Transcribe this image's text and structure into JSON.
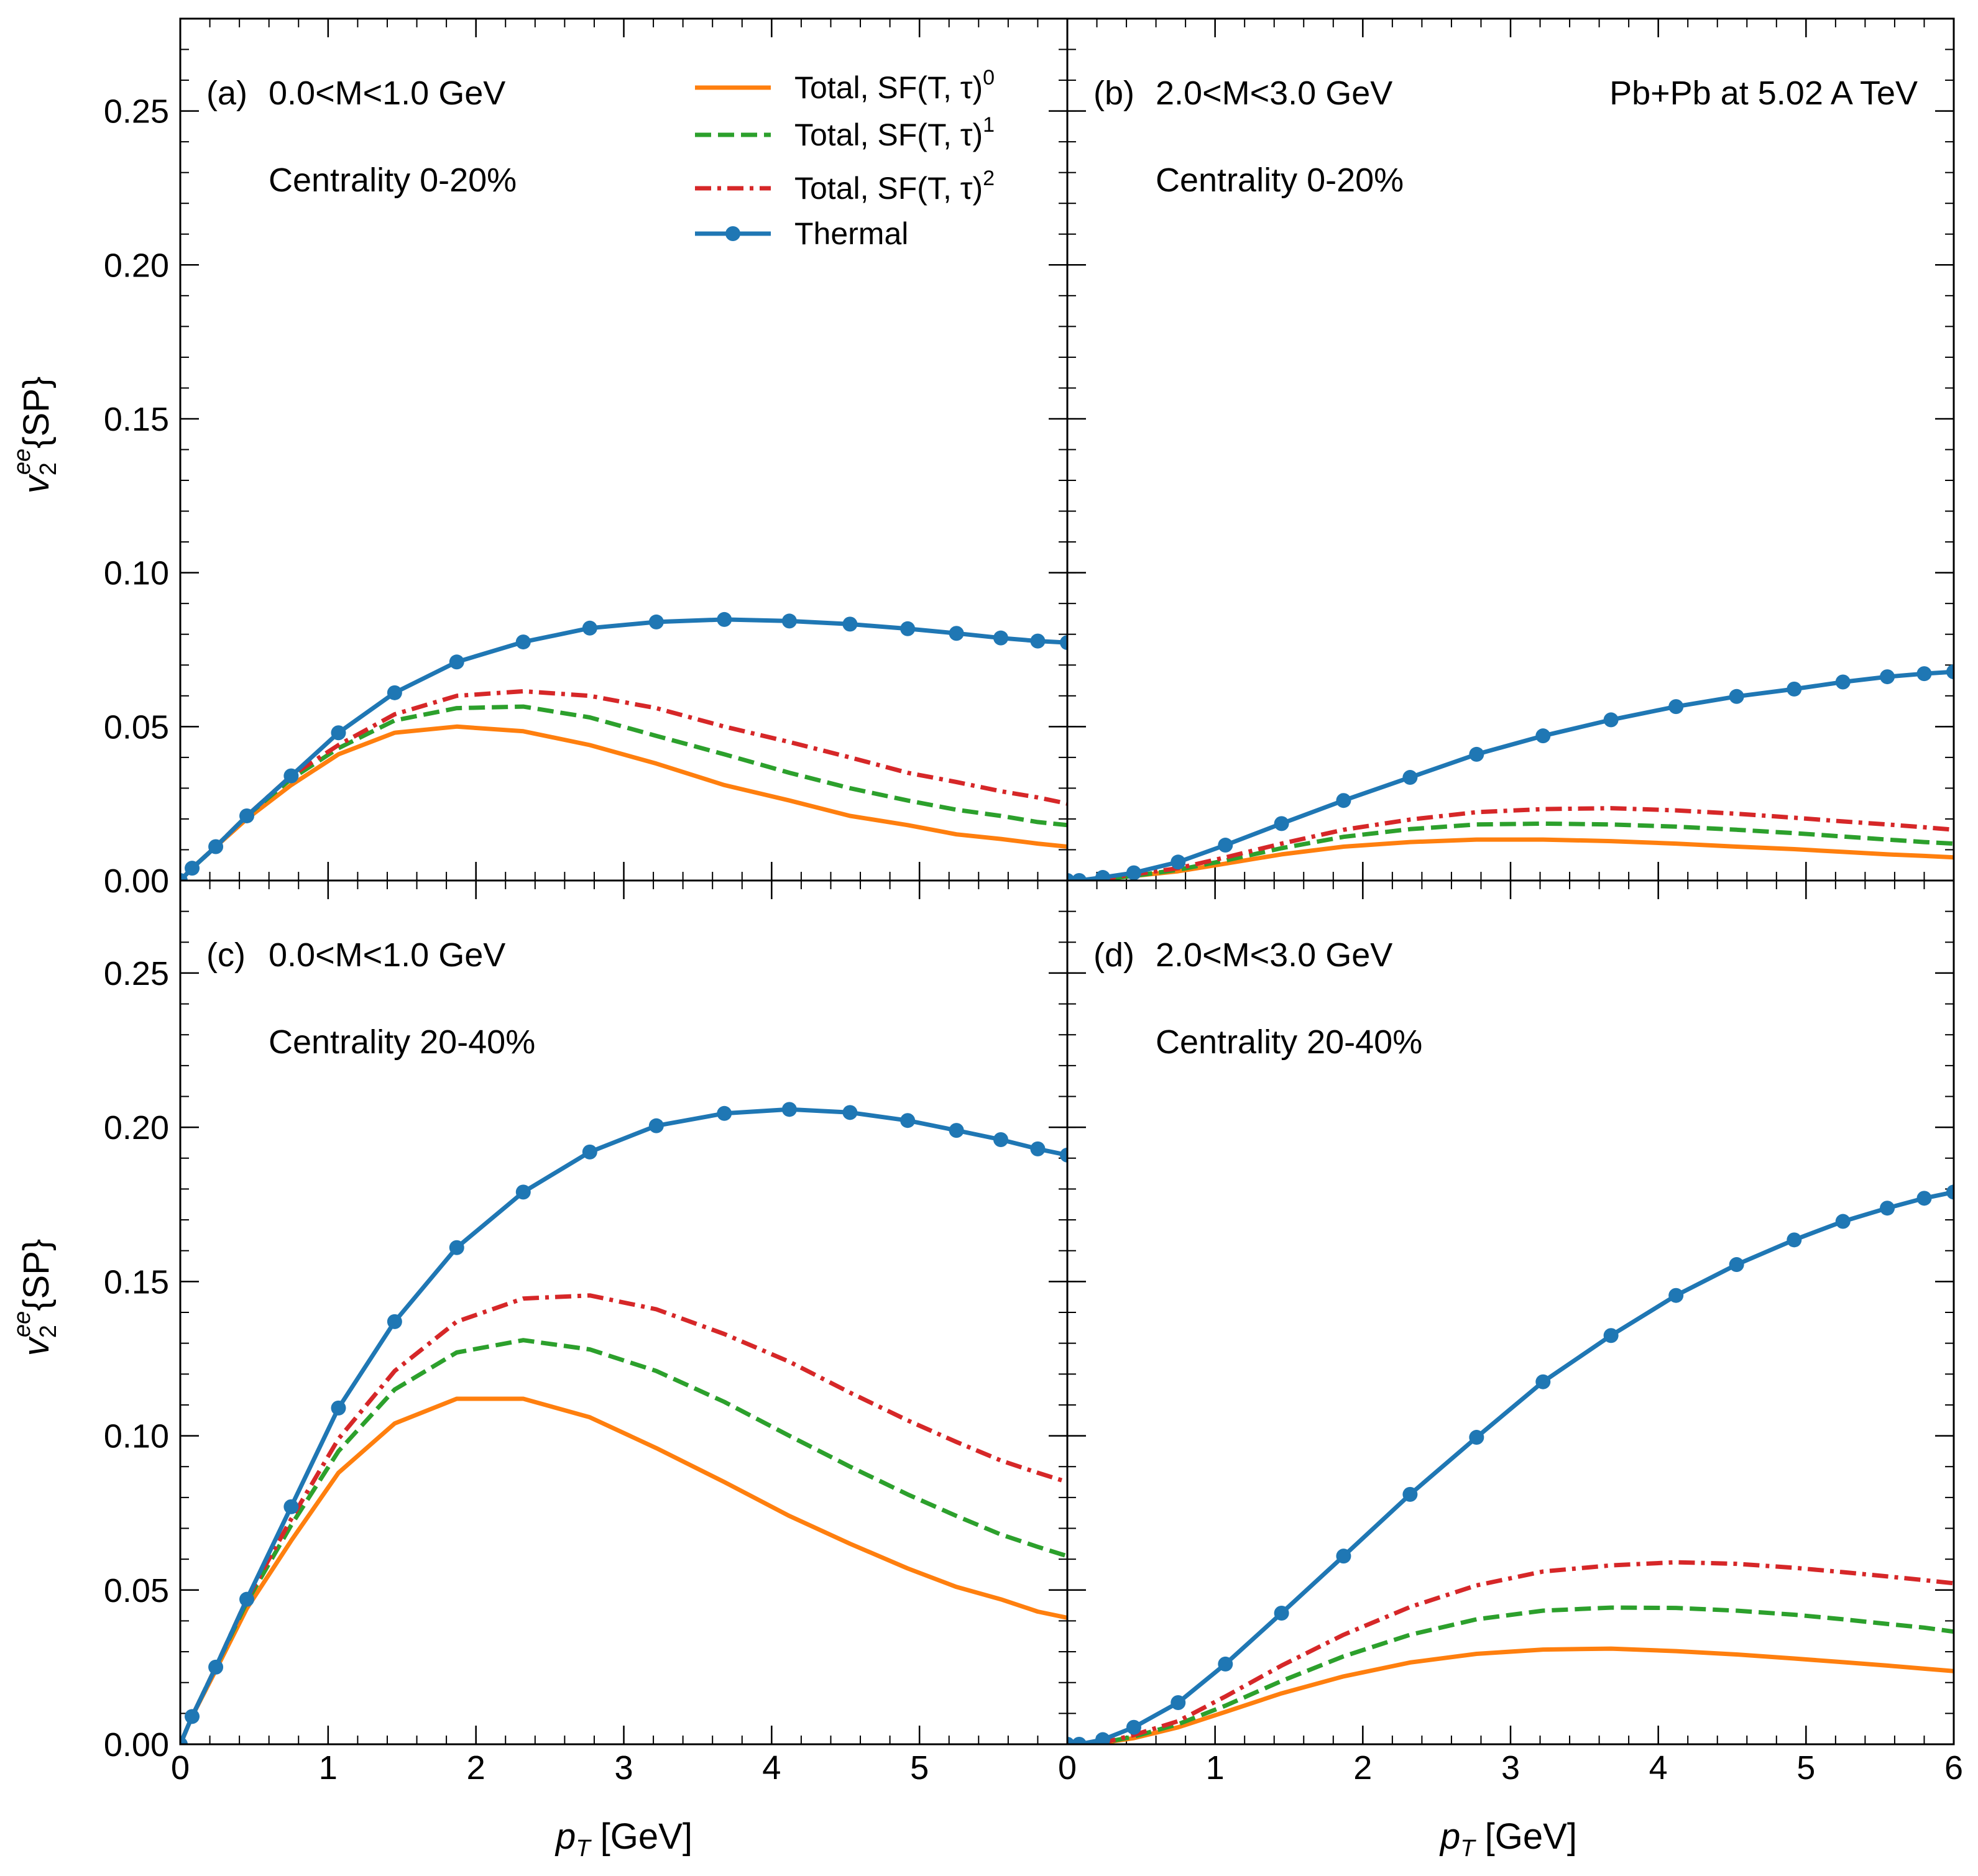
{
  "figure": {
    "ylabel": "v",
    "ylabel_sub": "2",
    "ylabel_sup": "ee",
    "ylabel_tail": "{SP}",
    "xlabel_p": "p",
    "xlabel_sub": "T",
    "xlabel_tail": " [GeV]",
    "global_label": "Pb+Pb at 5.02 A TeV"
  },
  "legend": [
    {
      "key": "sf0",
      "text": "Total, SF(T, τ)",
      "sup": "0",
      "color": "#ff7f0e",
      "style": "solid"
    },
    {
      "key": "sf1",
      "text": "Total, SF(T, τ)",
      "sup": "1",
      "color": "#2ca02c",
      "style": "dashed"
    },
    {
      "key": "sf2",
      "text": "Total, SF(T, τ)",
      "sup": "2",
      "color": "#d62728",
      "style": "dashdot"
    },
    {
      "key": "thermal",
      "text": "Thermal",
      "sup": "",
      "color": "#1f77b4",
      "style": "solid-marker"
    }
  ],
  "chart_data": [
    {
      "type": "line",
      "panel": "a",
      "label": "(a)",
      "mass": "0.0<M<1.0 GeV",
      "centrality": "Centrality 0-20%",
      "xlim": [
        0,
        6
      ],
      "ylim": [
        0,
        0.28
      ],
      "xticks": [
        0,
        1,
        2,
        3,
        4,
        5
      ],
      "xtick_labels": [
        "0",
        "1",
        "2",
        "3",
        "4",
        "5"
      ],
      "yticks": [
        0,
        0.05,
        0.1,
        0.15,
        0.2,
        0.25
      ],
      "ytick_labels": [
        "0.00",
        "0.05",
        "0.10",
        "0.15",
        "0.20",
        "0.25"
      ],
      "x": [
        0.0,
        0.08,
        0.24,
        0.45,
        0.75,
        1.07,
        1.45,
        1.87,
        2.32,
        2.77,
        3.22,
        3.68,
        4.12,
        4.53,
        4.92,
        5.25,
        5.55,
        5.8,
        6.0
      ],
      "series": [
        {
          "key": "sf0",
          "values": [
            0.0,
            0.004,
            0.011,
            0.02,
            0.031,
            0.041,
            0.048,
            0.05,
            0.0485,
            0.044,
            0.038,
            0.031,
            0.026,
            0.021,
            0.018,
            0.015,
            0.0135,
            0.012,
            0.011
          ]
        },
        {
          "key": "sf1",
          "values": [
            0.0,
            0.004,
            0.011,
            0.021,
            0.033,
            0.043,
            0.052,
            0.056,
            0.0565,
            0.053,
            0.047,
            0.041,
            0.035,
            0.03,
            0.026,
            0.023,
            0.021,
            0.019,
            0.018
          ]
        },
        {
          "key": "sf2",
          "values": [
            0.0,
            0.004,
            0.011,
            0.021,
            0.034,
            0.044,
            0.054,
            0.06,
            0.0615,
            0.06,
            0.056,
            0.05,
            0.045,
            0.04,
            0.035,
            0.032,
            0.029,
            0.027,
            0.025
          ]
        },
        {
          "key": "thermal",
          "values": [
            0.0,
            0.004,
            0.011,
            0.021,
            0.034,
            0.048,
            0.061,
            0.071,
            0.0775,
            0.082,
            0.084,
            0.0848,
            0.0843,
            0.0833,
            0.0818,
            0.0803,
            0.0788,
            0.0778,
            0.0773
          ]
        }
      ]
    },
    {
      "type": "line",
      "panel": "b",
      "label": "(b)",
      "mass": "2.0<M<3.0 GeV",
      "centrality": "Centrality 0-20%",
      "xlim": [
        0,
        6
      ],
      "ylim": [
        0,
        0.28
      ],
      "xticks": [
        0,
        1,
        2,
        3,
        4,
        5,
        6
      ],
      "xtick_labels": [],
      "yticks": [
        0,
        0.05,
        0.1,
        0.15,
        0.2,
        0.25
      ],
      "ytick_labels": [],
      "x": [
        0.0,
        0.08,
        0.24,
        0.45,
        0.75,
        1.07,
        1.45,
        1.87,
        2.32,
        2.77,
        3.22,
        3.68,
        4.12,
        4.53,
        4.92,
        5.25,
        5.55,
        5.8,
        6.0
      ],
      "series": [
        {
          "key": "sf0",
          "values": [
            0.0,
            0.0,
            0.0005,
            0.0015,
            0.003,
            0.0055,
            0.0085,
            0.011,
            0.0125,
            0.0133,
            0.0133,
            0.0128,
            0.012,
            0.011,
            0.0102,
            0.0093,
            0.0085,
            0.008,
            0.0075
          ]
        },
        {
          "key": "sf1",
          "values": [
            0.0,
            0.0,
            0.0005,
            0.0015,
            0.0035,
            0.0065,
            0.0105,
            0.0142,
            0.0167,
            0.0182,
            0.0185,
            0.0182,
            0.0175,
            0.0165,
            0.0154,
            0.0143,
            0.0133,
            0.0125,
            0.012
          ]
        },
        {
          "key": "sf2",
          "values": [
            0.0,
            0.0,
            0.0005,
            0.002,
            0.004,
            0.0075,
            0.012,
            0.0165,
            0.0198,
            0.0222,
            0.0232,
            0.0235,
            0.0228,
            0.0217,
            0.0204,
            0.0192,
            0.0182,
            0.0173,
            0.0165
          ]
        },
        {
          "key": "thermal",
          "values": [
            0.0,
            0.0,
            0.001,
            0.0025,
            0.006,
            0.0115,
            0.0185,
            0.026,
            0.0335,
            0.041,
            0.047,
            0.0522,
            0.0565,
            0.0598,
            0.0622,
            0.0645,
            0.0662,
            0.0672,
            0.0678
          ]
        }
      ]
    },
    {
      "type": "line",
      "panel": "c",
      "label": "(c)",
      "mass": "0.0<M<1.0 GeV",
      "centrality": "Centrality 20-40%",
      "xlim": [
        0,
        6
      ],
      "ylim": [
        0,
        0.28
      ],
      "xticks": [
        0,
        1,
        2,
        3,
        4,
        5
      ],
      "xtick_labels": [
        "0",
        "1",
        "2",
        "3",
        "4",
        "5"
      ],
      "yticks": [
        0,
        0.05,
        0.1,
        0.15,
        0.2,
        0.25
      ],
      "ytick_labels": [
        "0.00",
        "0.05",
        "0.10",
        "0.15",
        "0.20",
        "0.25"
      ],
      "x": [
        0.0,
        0.08,
        0.24,
        0.45,
        0.75,
        1.07,
        1.45,
        1.87,
        2.32,
        2.77,
        3.22,
        3.68,
        4.12,
        4.53,
        4.92,
        5.25,
        5.55,
        5.8,
        6.0
      ],
      "series": [
        {
          "key": "sf0",
          "values": [
            0.0,
            0.009,
            0.024,
            0.044,
            0.066,
            0.088,
            0.104,
            0.112,
            0.112,
            0.106,
            0.096,
            0.085,
            0.074,
            0.065,
            0.057,
            0.051,
            0.047,
            0.043,
            0.041
          ]
        },
        {
          "key": "sf1",
          "values": [
            0.0,
            0.009,
            0.025,
            0.046,
            0.071,
            0.095,
            0.115,
            0.127,
            0.131,
            0.128,
            0.121,
            0.111,
            0.1,
            0.09,
            0.081,
            0.074,
            0.068,
            0.064,
            0.061
          ]
        },
        {
          "key": "sf2",
          "values": [
            0.0,
            0.009,
            0.025,
            0.047,
            0.073,
            0.099,
            0.121,
            0.137,
            0.1445,
            0.1455,
            0.141,
            0.133,
            0.124,
            0.114,
            0.105,
            0.098,
            0.092,
            0.088,
            0.085
          ]
        },
        {
          "key": "thermal",
          "values": [
            0.0,
            0.009,
            0.025,
            0.047,
            0.077,
            0.109,
            0.137,
            0.161,
            0.179,
            0.192,
            0.2005,
            0.2045,
            0.2058,
            0.2048,
            0.2022,
            0.199,
            0.196,
            0.193,
            0.191
          ]
        }
      ]
    },
    {
      "type": "line",
      "panel": "d",
      "label": "(d)",
      "mass": "2.0<M<3.0 GeV",
      "centrality": "Centrality 20-40%",
      "xlim": [
        0,
        6
      ],
      "ylim": [
        0,
        0.28
      ],
      "xticks": [
        0,
        1,
        2,
        3,
        4,
        5,
        6
      ],
      "xtick_labels": [
        "0",
        "1",
        "2",
        "3",
        "4",
        "5",
        "6"
      ],
      "yticks": [
        0,
        0.05,
        0.1,
        0.15,
        0.2,
        0.25
      ],
      "ytick_labels": [],
      "x": [
        0.0,
        0.08,
        0.24,
        0.45,
        0.75,
        1.07,
        1.45,
        1.87,
        2.32,
        2.77,
        3.22,
        3.68,
        4.12,
        4.53,
        4.92,
        5.25,
        5.55,
        5.8,
        6.0
      ],
      "series": [
        {
          "key": "sf0",
          "values": [
            0.0,
            0.0,
            0.0005,
            0.002,
            0.0055,
            0.0105,
            0.0165,
            0.022,
            0.0265,
            0.0293,
            0.0307,
            0.031,
            0.0302,
            0.0291,
            0.0278,
            0.0266,
            0.0255,
            0.0245,
            0.0237
          ]
        },
        {
          "key": "sf1",
          "values": [
            0.0,
            0.0,
            0.0005,
            0.0025,
            0.0065,
            0.0125,
            0.0205,
            0.0285,
            0.0355,
            0.0405,
            0.0433,
            0.0443,
            0.0442,
            0.0433,
            0.042,
            0.0405,
            0.039,
            0.0378,
            0.0365
          ]
        },
        {
          "key": "sf2",
          "values": [
            0.0,
            0.0,
            0.0005,
            0.003,
            0.0075,
            0.0155,
            0.0255,
            0.0355,
            0.0445,
            0.0515,
            0.056,
            0.058,
            0.059,
            0.0585,
            0.0572,
            0.0558,
            0.0544,
            0.0532,
            0.0522
          ]
        },
        {
          "key": "thermal",
          "values": [
            0.0,
            0.0,
            0.0015,
            0.0055,
            0.0135,
            0.026,
            0.0425,
            0.061,
            0.081,
            0.0995,
            0.1175,
            0.1325,
            0.1455,
            0.1555,
            0.1635,
            0.1695,
            0.1738,
            0.177,
            0.179
          ]
        }
      ]
    }
  ]
}
